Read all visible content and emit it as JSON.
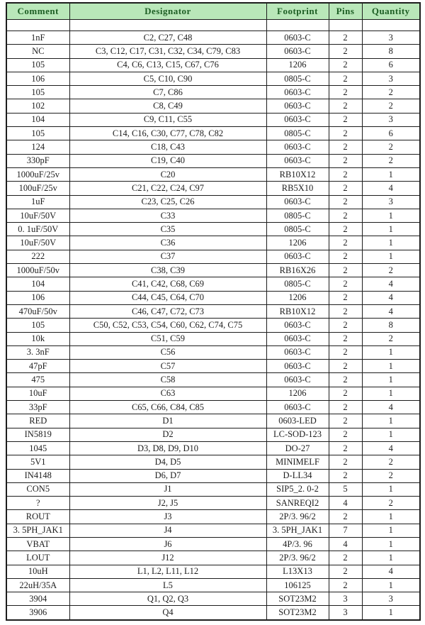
{
  "table": {
    "header_bg": "#b9e7b9",
    "header_text_color": "#1d5e24",
    "border_color": "#1d1d1d",
    "columns": [
      "Comment",
      "Designator",
      "Footprint",
      "Pins",
      "Quantity"
    ],
    "rows": [
      [
        "1nF",
        "C2, C27, C48",
        "0603-C",
        "2",
        "3"
      ],
      [
        "NC",
        "C3, C12, C17, C31, C32, C34, C79, C83",
        "0603-C",
        "2",
        "8"
      ],
      [
        "105",
        "C4, C6, C13, C15, C67, C76",
        "1206",
        "2",
        "6"
      ],
      [
        "106",
        "C5, C10, C90",
        "0805-C",
        "2",
        "3"
      ],
      [
        "105",
        "C7, C86",
        "0603-C",
        "2",
        "2"
      ],
      [
        "102",
        "C8, C49",
        "0603-C",
        "2",
        "2"
      ],
      [
        "104",
        "C9, C11, C55",
        "0603-C",
        "2",
        "3"
      ],
      [
        "105",
        "C14, C16, C30, C77, C78, C82",
        "0805-C",
        "2",
        "6"
      ],
      [
        "124",
        "C18, C43",
        "0603-C",
        "2",
        "2"
      ],
      [
        "330pF",
        "C19, C40",
        "0603-C",
        "2",
        "2"
      ],
      [
        "1000uF/25v",
        "C20",
        "RB10X12",
        "2",
        "1"
      ],
      [
        "100uF/25v",
        "C21, C22, C24, C97",
        "RB5X10",
        "2",
        "4"
      ],
      [
        "1uF",
        "C23, C25, C26",
        "0603-C",
        "2",
        "3"
      ],
      [
        "10uF/50V",
        "C33",
        "0805-C",
        "2",
        "1"
      ],
      [
        "0. 1uF/50V",
        "C35",
        "0805-C",
        "2",
        "1"
      ],
      [
        "10uF/50V",
        "C36",
        "1206",
        "2",
        "1"
      ],
      [
        "222",
        "C37",
        "0603-C",
        "2",
        "1"
      ],
      [
        "1000uF/50v",
        "C38, C39",
        "RB16X26",
        "2",
        "2"
      ],
      [
        "104",
        "C41, C42, C68, C69",
        "0805-C",
        "2",
        "4"
      ],
      [
        "106",
        "C44, C45, C64, C70",
        "1206",
        "2",
        "4"
      ],
      [
        "470uF/50v",
        "C46, C47, C72, C73",
        "RB10X12",
        "2",
        "4"
      ],
      [
        "105",
        "C50, C52, C53, C54, C60, C62, C74, C75",
        "0603-C",
        "2",
        "8"
      ],
      [
        "10k",
        "C51, C59",
        "0603-C",
        "2",
        "2"
      ],
      [
        "3. 3nF",
        "C56",
        "0603-C",
        "2",
        "1"
      ],
      [
        "47pF",
        "C57",
        "0603-C",
        "2",
        "1"
      ],
      [
        "475",
        "C58",
        "0603-C",
        "2",
        "1"
      ],
      [
        "10uF",
        "C63",
        "1206",
        "2",
        "1"
      ],
      [
        "33pF",
        "C65, C66, C84, C85",
        "0603-C",
        "2",
        "4"
      ],
      [
        "RED",
        "D1",
        "0603-LED",
        "2",
        "1"
      ],
      [
        "IN5819",
        "D2",
        "LC-SOD-123",
        "2",
        "1"
      ],
      [
        "1045",
        "D3, D8, D9, D10",
        "DO-27",
        "2",
        "4"
      ],
      [
        "5V1",
        "D4, D5",
        "MINIMELF",
        "2",
        "2"
      ],
      [
        "IN4148",
        "D6, D7",
        "D-LL34",
        "2",
        "2"
      ],
      [
        "CON5",
        "J1",
        "SIP5_2. 0-2",
        "5",
        "1"
      ],
      [
        "?",
        "J2, J5",
        "SANREQI2",
        "4",
        "2"
      ],
      [
        "ROUT",
        "J3",
        "2P/3. 96/2",
        "2",
        "1"
      ],
      [
        "3. 5PH_JAK1",
        "J4",
        "3. 5PH_JAK1",
        "7",
        "1"
      ],
      [
        "VBAT",
        "J6",
        "4P/3. 96",
        "4",
        "1"
      ],
      [
        "LOUT",
        "J12",
        "2P/3. 96/2",
        "2",
        "1"
      ],
      [
        "10uH",
        "L1, L2, L11, L12",
        "L13X13",
        "2",
        "4"
      ],
      [
        "22uH/35A",
        "L5",
        "106125",
        "2",
        "1"
      ],
      [
        "3904",
        "Q1, Q2, Q3",
        "SOT23M2",
        "3",
        "3"
      ],
      [
        "3906",
        "Q4",
        "SOT23M2",
        "3",
        "1"
      ]
    ]
  }
}
